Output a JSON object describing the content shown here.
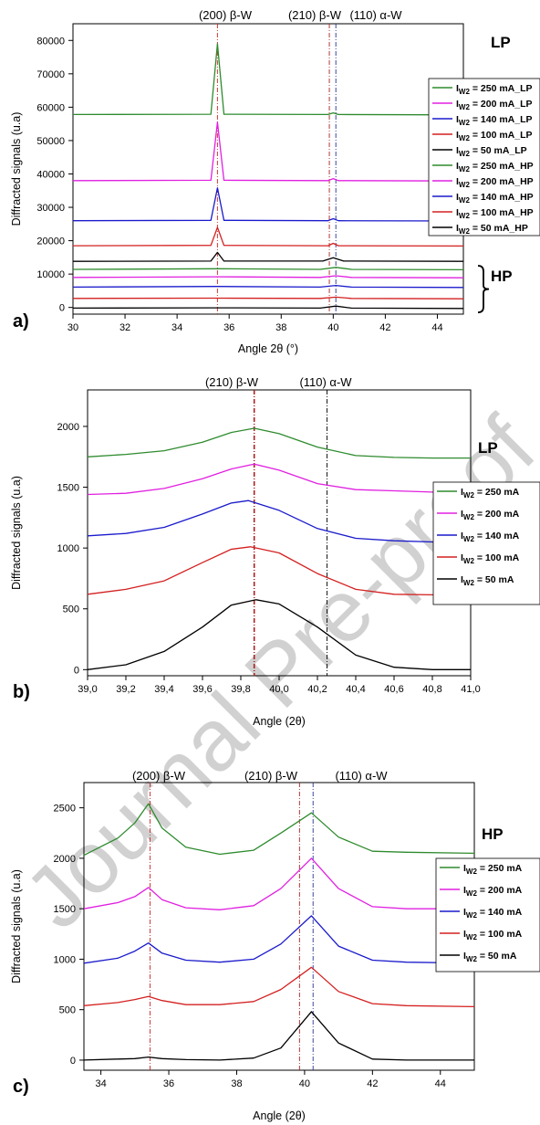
{
  "colors": {
    "green": "#2e8b2e",
    "magenta": "#e020e0",
    "blue": "#1a1acc",
    "red": "#d42020",
    "black": "#000000",
    "ref_beta200": "#cc2222",
    "ref_beta210": "#aa2222",
    "ref_alpha110": "#223399"
  },
  "watermark": "Journal Pre-proof",
  "chart_data": [
    {
      "panel_label": "a)",
      "type": "line",
      "group_labels": [
        "LP",
        "HP"
      ],
      "peak_labels": [
        "(200) β-W",
        "(210) β-W",
        "(110) α-W"
      ],
      "reference_lines": [
        35.55,
        39.85,
        40.1
      ],
      "xlabel": "Angle 2θ (°)",
      "ylabel": "Diffracted signals (u.a)",
      "xlim": [
        30,
        45
      ],
      "ylim": [
        -2000,
        85000
      ],
      "xticks": [
        30,
        32,
        34,
        36,
        38,
        40,
        42,
        44
      ],
      "yticks": [
        0,
        10000,
        20000,
        30000,
        40000,
        50000,
        60000,
        70000,
        80000
      ],
      "legend": [
        "I<sub>W2</sub> = 250 mA_LP",
        "I<sub>W2</sub> = 200 mA_LP",
        "I<sub>W2</sub> = 140 mA_LP",
        "I<sub>W2</sub> = 100 mA_LP",
        "I<sub>W2</sub> = 50 mA_LP",
        "I<sub>W2</sub> = 250 mA_HP",
        "I<sub>W2</sub> = 200 mA_HP",
        "I<sub>W2</sub> = 140 mA_HP",
        "I<sub>W2</sub> = 100 mA_HP",
        "I<sub>W2</sub> = 50 mA_HP"
      ],
      "series": [
        {
          "color": "green",
          "x": [
            30,
            35.3,
            35.55,
            35.8,
            39.8,
            40.0,
            40.2,
            45
          ],
          "y": [
            57800,
            57900,
            79000,
            57900,
            57800,
            58300,
            57800,
            57700
          ]
        },
        {
          "color": "magenta",
          "x": [
            30,
            35.3,
            35.55,
            35.8,
            39.8,
            40.0,
            40.2,
            45
          ],
          "y": [
            38000,
            38100,
            55500,
            38100,
            38000,
            38600,
            38000,
            37900
          ]
        },
        {
          "color": "blue",
          "x": [
            30,
            35.3,
            35.55,
            35.8,
            39.8,
            40.0,
            40.2,
            45
          ],
          "y": [
            26000,
            26100,
            35800,
            26100,
            26000,
            26600,
            26000,
            25900
          ]
        },
        {
          "color": "red",
          "x": [
            30,
            35.3,
            35.55,
            35.8,
            39.8,
            40.0,
            40.2,
            45
          ],
          "y": [
            18500,
            18600,
            24000,
            18600,
            18500,
            19200,
            18500,
            18400
          ]
        },
        {
          "color": "black",
          "x": [
            30,
            35.3,
            35.55,
            35.8,
            39.6,
            40.0,
            40.4,
            45
          ],
          "y": [
            13800,
            13900,
            16500,
            13900,
            13900,
            14900,
            13900,
            13800
          ]
        },
        {
          "color": "green",
          "x": [
            30,
            35.55,
            39.5,
            40.1,
            40.7,
            45
          ],
          "y": [
            11400,
            11600,
            11400,
            12000,
            11400,
            11300
          ]
        },
        {
          "color": "magenta",
          "x": [
            30,
            35.55,
            39.5,
            40.1,
            40.7,
            45
          ],
          "y": [
            9000,
            9200,
            9000,
            9500,
            9000,
            8900
          ]
        },
        {
          "color": "blue",
          "x": [
            30,
            35.55,
            39.5,
            40.1,
            40.7,
            45
          ],
          "y": [
            6100,
            6300,
            6100,
            6600,
            6100,
            6000
          ]
        },
        {
          "color": "red",
          "x": [
            30,
            35.55,
            39.5,
            40.1,
            40.7,
            45
          ],
          "y": [
            2700,
            2800,
            2700,
            3100,
            2700,
            2600
          ]
        },
        {
          "color": "black",
          "x": [
            30,
            35.55,
            39.5,
            40.1,
            40.7,
            45
          ],
          "y": [
            -200,
            -100,
            -200,
            400,
            -200,
            -300
          ]
        }
      ]
    },
    {
      "panel_label": "b)",
      "type": "line",
      "group_labels": [
        "LP"
      ],
      "peak_labels": [
        "(210) β-W",
        "(110) α-W"
      ],
      "reference_lines": [
        39.87,
        40.25
      ],
      "xlabel": "Angle (2θ)",
      "ylabel": "Diffracted signals (u.a)",
      "xlim": [
        39.0,
        41.0
      ],
      "ylim": [
        -50,
        2300
      ],
      "xticks": [
        "39,0",
        "39,2",
        "39,4",
        "39,6",
        "39,8",
        "40,0",
        "40,2",
        "40,4",
        "40,6",
        "40,8",
        "41,0"
      ],
      "yticks": [
        0,
        500,
        1000,
        1500,
        2000
      ],
      "legend": [
        "I<sub>W2</sub> = 250 mA",
        "I<sub>W2</sub> = 200 mA",
        "I<sub>W2</sub> = 140 mA",
        "I<sub>W2</sub> = 100 mA",
        "I<sub>W2</sub> = 50 mA"
      ],
      "series": [
        {
          "color": "green",
          "x": [
            39.0,
            39.2,
            39.4,
            39.6,
            39.75,
            39.87,
            40.0,
            40.2,
            40.4,
            40.6,
            40.8,
            41.0
          ],
          "y": [
            1750,
            1770,
            1800,
            1870,
            1950,
            1985,
            1940,
            1830,
            1760,
            1745,
            1740,
            1740
          ]
        },
        {
          "color": "magenta",
          "x": [
            39.0,
            39.2,
            39.4,
            39.6,
            39.75,
            39.87,
            40.0,
            40.2,
            40.4,
            40.6,
            40.8,
            41.0
          ],
          "y": [
            1440,
            1450,
            1490,
            1570,
            1650,
            1690,
            1640,
            1530,
            1480,
            1470,
            1460,
            1460
          ]
        },
        {
          "color": "blue",
          "x": [
            39.0,
            39.2,
            39.4,
            39.6,
            39.75,
            39.84,
            40.0,
            40.2,
            40.4,
            40.6,
            40.8,
            41.0
          ],
          "y": [
            1100,
            1120,
            1170,
            1280,
            1370,
            1390,
            1310,
            1160,
            1080,
            1060,
            1050,
            1050
          ]
        },
        {
          "color": "red",
          "x": [
            39.0,
            39.2,
            39.4,
            39.6,
            39.75,
            39.85,
            40.0,
            40.2,
            40.4,
            40.6,
            40.8,
            41.0
          ],
          "y": [
            620,
            660,
            730,
            880,
            990,
            1010,
            960,
            790,
            660,
            620,
            615,
            615
          ]
        },
        {
          "color": "black",
          "x": [
            39.0,
            39.2,
            39.4,
            39.6,
            39.75,
            39.88,
            40.0,
            40.2,
            40.4,
            40.6,
            40.8,
            41.0
          ],
          "y": [
            0,
            40,
            150,
            350,
            530,
            575,
            540,
            350,
            120,
            20,
            0,
            0
          ]
        }
      ]
    },
    {
      "panel_label": "c)",
      "type": "line",
      "group_labels": [
        "HP"
      ],
      "peak_labels": [
        "(200) β-W",
        "(210) β-W",
        "(110) α-W"
      ],
      "reference_lines": [
        35.45,
        39.85,
        40.25
      ],
      "xlabel": "Angle (2θ)",
      "ylabel": "Diffracted signals (u.a)",
      "xlim": [
        33.5,
        45
      ],
      "ylim": [
        -100,
        2750
      ],
      "xticks": [
        34,
        36,
        38,
        40,
        42,
        44
      ],
      "yticks": [
        0,
        500,
        1000,
        1500,
        2000,
        2500
      ],
      "legend": [
        "I<sub>W2</sub> = 250 mA",
        "I<sub>W2</sub> = 200 mA",
        "I<sub>W2</sub> = 140 mA",
        "I<sub>W2</sub> = 100 mA",
        "I<sub>W2</sub> = 50 mA"
      ],
      "series": [
        {
          "color": "green",
          "x": [
            33.5,
            34.5,
            35.0,
            35.4,
            35.8,
            36.5,
            37.5,
            38.5,
            39.3,
            40.2,
            41.0,
            42.0,
            43.0,
            45.0
          ],
          "y": [
            2030,
            2200,
            2350,
            2540,
            2300,
            2110,
            2040,
            2080,
            2250,
            2450,
            2210,
            2070,
            2060,
            2050
          ]
        },
        {
          "color": "magenta",
          "x": [
            33.5,
            34.5,
            35.0,
            35.4,
            35.8,
            36.5,
            37.5,
            38.5,
            39.3,
            40.2,
            41.0,
            42.0,
            43.0,
            45.0
          ],
          "y": [
            1500,
            1560,
            1620,
            1710,
            1590,
            1510,
            1490,
            1530,
            1700,
            2000,
            1700,
            1520,
            1500,
            1500
          ]
        },
        {
          "color": "blue",
          "x": [
            33.5,
            34.5,
            35.0,
            35.4,
            35.8,
            36.5,
            37.5,
            38.5,
            39.3,
            40.2,
            41.0,
            42.0,
            43.0,
            45.0
          ],
          "y": [
            960,
            1010,
            1080,
            1160,
            1060,
            990,
            970,
            1000,
            1150,
            1430,
            1130,
            990,
            970,
            960
          ]
        },
        {
          "color": "red",
          "x": [
            33.5,
            34.5,
            35.0,
            35.4,
            35.8,
            36.5,
            37.5,
            38.5,
            39.3,
            40.2,
            41.0,
            42.0,
            43.0,
            45.0
          ],
          "y": [
            540,
            570,
            600,
            630,
            590,
            550,
            550,
            580,
            700,
            920,
            680,
            560,
            540,
            530
          ]
        },
        {
          "color": "black",
          "x": [
            33.5,
            34.5,
            35.0,
            35.4,
            35.8,
            36.5,
            37.5,
            38.5,
            39.3,
            40.2,
            41.0,
            42.0,
            43.0,
            45.0
          ],
          "y": [
            0,
            10,
            15,
            30,
            15,
            5,
            0,
            20,
            120,
            480,
            170,
            10,
            0,
            0
          ]
        }
      ]
    }
  ]
}
